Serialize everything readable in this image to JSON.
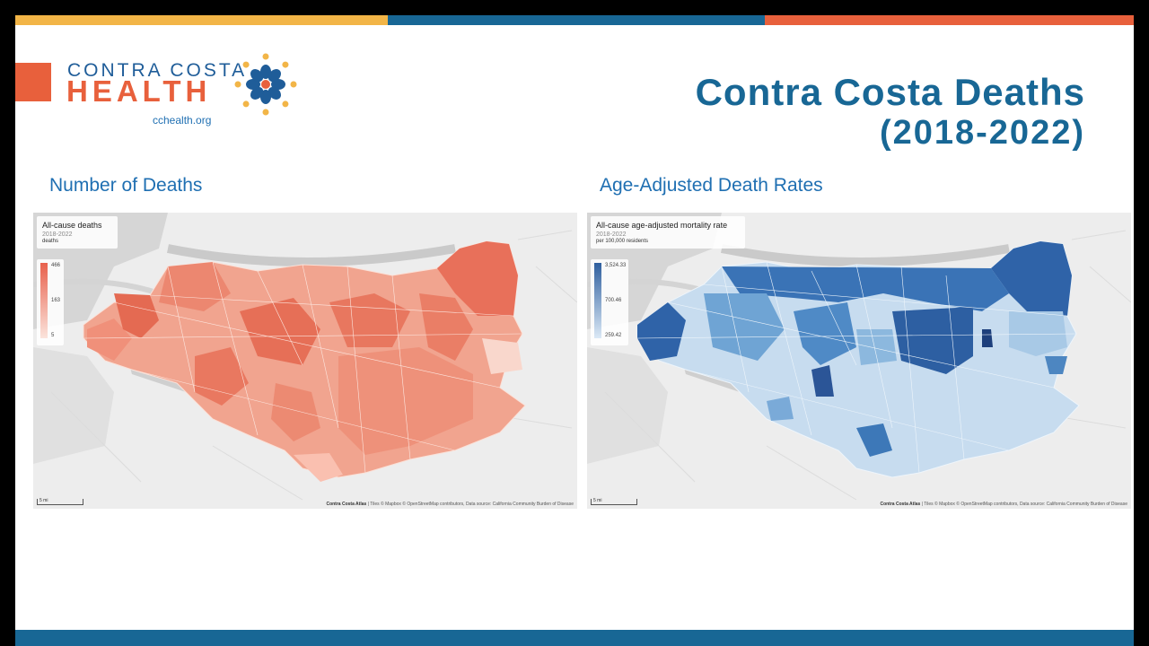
{
  "colors": {
    "orange": "#e8603c",
    "blue": "#186795",
    "gold": "#f2b547",
    "death_red": "#e8604c",
    "rate_blue": "#2f63a8"
  },
  "logo": {
    "line1": "CONTRA COSTA",
    "line2": "HEALTH",
    "url": "cchealth.org"
  },
  "title": {
    "line1": "Contra Costa Deaths",
    "line2": "(2018-2022)"
  },
  "panels": [
    {
      "heading": "Number of Deaths",
      "legend": {
        "title": "All-cause deaths",
        "period": "2018-2022",
        "unit": "deaths",
        "max": "466",
        "mid": "163",
        "min": "5"
      },
      "scale": "5 mi",
      "attribution_bold": "Contra Costa Atlas",
      "attribution": " | Tiles © Mapbox © OpenStreetMap contributors, Data source: California Community Burden of Disease"
    },
    {
      "heading": "Age-Adjusted Death Rates",
      "legend": {
        "title": "All-cause age-adjusted mortality rate",
        "period": "2018-2022",
        "unit": "per 100,000 residents",
        "max": "3,524.33",
        "mid": "700.46",
        "min": "259.42"
      },
      "scale": "5 mi",
      "attribution_bold": "Contra Costa Atlas",
      "attribution": " | Tiles © Mapbox © OpenStreetMap contributors, Data source: California Community Burden of Disease"
    }
  ]
}
